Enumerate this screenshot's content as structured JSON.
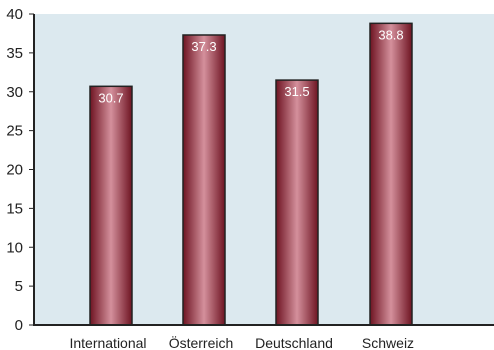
{
  "chart_data": {
    "type": "bar",
    "categories": [
      "International",
      "Österreich",
      "Deutschland",
      "Schweiz"
    ],
    "values": [
      30.7,
      37.3,
      31.5,
      38.8
    ],
    "data_labels": [
      "30.7",
      "37.3",
      "31.5",
      "38.8"
    ],
    "y_ticks": [
      "0",
      "5",
      "10",
      "15",
      "20",
      "25",
      "30",
      "35",
      "40"
    ],
    "ylim": [
      0,
      40
    ],
    "grid": false,
    "legend": "none",
    "colors": {
      "plot_background": "#dce9ef",
      "bar_dark": "#6e1422",
      "bar_light": "#d4909c",
      "axis": "#222222",
      "data_label": "#ffffff"
    }
  }
}
